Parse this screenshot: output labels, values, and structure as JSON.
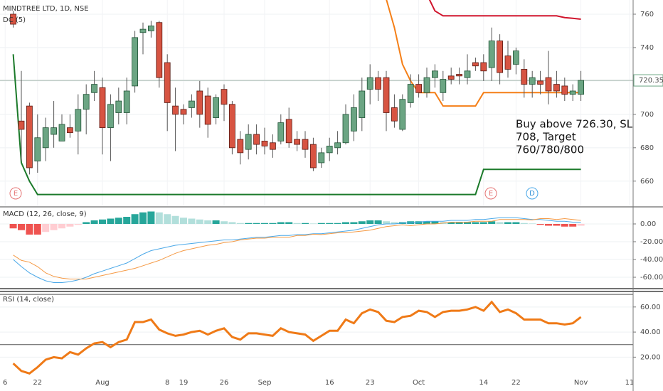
{
  "chart_data": [
    {
      "type": "candlestick",
      "title": "MINDTREE LTD, 1D, NSE",
      "indicator": "DC (5)",
      "up_color": "#6ba583",
      "down_color": "#d75442",
      "open": [
        760,
        696,
        705,
        672,
        680,
        688,
        684,
        692,
        690,
        703,
        713,
        716,
        692,
        701,
        701,
        717,
        749,
        750,
        755,
        731,
        705,
        703,
        704,
        714,
        711,
        698,
        715,
        706,
        685,
        679,
        688,
        684,
        683,
        684,
        697,
        685,
        685,
        682,
        671,
        677,
        680,
        683,
        690,
        698,
        715,
        722,
        722,
        704,
        691,
        707,
        718,
        713,
        722,
        713,
        723,
        724,
        722,
        731,
        731,
        728,
        744,
        735,
        730,
        727,
        718,
        720,
        722,
        718,
        717,
        712,
        712
      ],
      "high": [
        762,
        726,
        707,
        700,
        698,
        708,
        700,
        700,
        712,
        718,
        726,
        722,
        712,
        716,
        722,
        750,
        755,
        756,
        756,
        736,
        716,
        706,
        712,
        720,
        716,
        712,
        718,
        708,
        690,
        694,
        694,
        692,
        688,
        700,
        704,
        690,
        690,
        686,
        680,
        686,
        690,
        706,
        712,
        722,
        730,
        726,
        726,
        712,
        712,
        724,
        724,
        728,
        730,
        726,
        728,
        728,
        736,
        734,
        736,
        752,
        748,
        744,
        740,
        733,
        726,
        726,
        738,
        726,
        722,
        718,
        726
      ],
      "low": [
        752,
        672,
        664,
        665,
        672,
        680,
        684,
        686,
        676,
        688,
        708,
        676,
        672,
        694,
        694,
        713,
        736,
        746,
        716,
        690,
        678,
        694,
        698,
        692,
        686,
        694,
        696,
        676,
        670,
        673,
        676,
        676,
        674,
        682,
        680,
        678,
        674,
        666,
        668,
        672,
        676,
        682,
        684,
        690,
        706,
        708,
        690,
        692,
        690,
        704,
        710,
        710,
        716,
        708,
        718,
        718,
        718,
        726,
        720,
        720,
        718,
        722,
        724,
        710,
        710,
        712,
        706,
        710,
        708,
        708,
        708
      ],
      "close": [
        754,
        691,
        668,
        686,
        692,
        692,
        694,
        689,
        703,
        712,
        718,
        692,
        706,
        708,
        714,
        746,
        751,
        753,
        722,
        707,
        700,
        700,
        708,
        700,
        694,
        710,
        706,
        680,
        677,
        688,
        682,
        681,
        679,
        695,
        683,
        682,
        679,
        668,
        677,
        681,
        683,
        700,
        704,
        714,
        722,
        715,
        701,
        696,
        709,
        718,
        713,
        722,
        726,
        721,
        721,
        723,
        726,
        729,
        726,
        744,
        725,
        727,
        738,
        718,
        722,
        718,
        714,
        714,
        712,
        714,
        720.35
      ],
      "series": [
        {
          "color": "#1b7a2a",
          "values": [
            736,
            671,
            660,
            652,
            652,
            652,
            652,
            652,
            652,
            652,
            652,
            652,
            652,
            652,
            652,
            652,
            652,
            652,
            652,
            652,
            652,
            652,
            652,
            652,
            652,
            652,
            652,
            652,
            652,
            652,
            652,
            652,
            652,
            652,
            652,
            652,
            652,
            652,
            652,
            652,
            652,
            652,
            652,
            652,
            652,
            652,
            652,
            652,
            652,
            652,
            652,
            652,
            652,
            652,
            652,
            652,
            652,
            652,
            667,
            667,
            667,
            667,
            667,
            667,
            667,
            667,
            667,
            667,
            667,
            667,
            667
          ]
        },
        {
          "color": "#f57f17",
          "values": [
            null,
            null,
            null,
            null,
            null,
            null,
            null,
            null,
            null,
            null,
            null,
            null,
            null,
            null,
            null,
            null,
            null,
            null,
            null,
            null,
            null,
            null,
            null,
            null,
            null,
            null,
            null,
            null,
            null,
            null,
            null,
            null,
            null,
            null,
            null,
            null,
            null,
            null,
            null,
            null,
            null,
            null,
            null,
            null,
            null,
            null,
            769,
            752,
            730,
            720,
            713,
            713,
            713,
            705,
            705,
            705,
            705,
            705,
            713,
            713,
            713,
            713,
            713,
            713,
            713,
            713,
            713,
            713,
            713,
            713,
            713
          ]
        },
        {
          "color": "#d0142c",
          "values": [
            null,
            null,
            null,
            null,
            null,
            null,
            null,
            null,
            null,
            null,
            null,
            null,
            null,
            null,
            null,
            null,
            null,
            null,
            null,
            null,
            null,
            null,
            null,
            null,
            null,
            null,
            null,
            null,
            null,
            null,
            null,
            null,
            null,
            null,
            null,
            null,
            null,
            null,
            null,
            null,
            null,
            null,
            null,
            null,
            null,
            null,
            null,
            null,
            null,
            null,
            null,
            772,
            762,
            759,
            759,
            759,
            759,
            759,
            759,
            759,
            759,
            759,
            759,
            759,
            759,
            759,
            759,
            759,
            758,
            757.5,
            757
          ]
        }
      ],
      "last_price": {
        "value": 720.35,
        "label": "720.35"
      },
      "annotation": [
        "Buy above 726.30, SL",
        "708, Target",
        "760/780/800"
      ],
      "events": [
        "E",
        "E",
        "D"
      ],
      "ylim": [
        645,
        768.5
      ],
      "yticks": [
        660,
        680,
        700,
        720,
        740,
        760
      ],
      "xticks": [
        {
          "value": -1,
          "label": "6"
        },
        {
          "value": 3,
          "label": "22"
        },
        {
          "value": 11,
          "label": "Aug"
        },
        {
          "value": 19,
          "label": "8"
        },
        {
          "value": 21,
          "label": "19"
        },
        {
          "value": 26,
          "label": "26"
        },
        {
          "value": 31,
          "label": "Sep"
        },
        {
          "value": 39,
          "label": "16"
        },
        {
          "value": 44,
          "label": "23"
        },
        {
          "value": 50,
          "label": "Oct"
        },
        {
          "value": 58,
          "label": "14"
        },
        {
          "value": 62,
          "label": "22"
        },
        {
          "value": 70,
          "label": "Nov"
        },
        {
          "value": 76,
          "label": "11"
        }
      ]
    },
    {
      "type": "macd",
      "title": "MACD (12, 26, close, 9)",
      "histogram": [
        -5,
        -7,
        -12,
        -12,
        -9,
        -7,
        -5,
        -3,
        -1,
        2,
        4,
        5,
        6,
        7,
        8,
        11,
        13,
        14,
        13,
        11,
        9,
        7,
        6,
        5,
        4,
        4,
        3,
        2,
        1,
        1,
        1,
        1,
        1,
        2,
        2,
        1,
        1,
        0.5,
        1,
        1,
        1,
        2,
        2,
        3,
        4,
        4,
        3,
        2,
        2,
        3,
        3,
        3,
        3,
        2,
        2,
        2,
        2,
        2,
        2,
        3,
        2,
        2,
        2,
        1,
        0.5,
        -1,
        -2,
        -2,
        -3,
        -3,
        -2
      ],
      "histogram_colors": {
        "pos_up": "#26a69a",
        "pos_down": "#b2dfdb",
        "neg_down": "#ef5350",
        "neg_up": "#ffcdd2"
      },
      "series": [
        {
          "color": "#4aa8e8",
          "values": [
            -40,
            -48,
            -55,
            -60,
            -64,
            -66,
            -66,
            -65,
            -63,
            -60,
            -56,
            -53,
            -50,
            -47,
            -44,
            -39,
            -34,
            -30,
            -28,
            -26,
            -24,
            -23,
            -22,
            -21,
            -20,
            -19,
            -18,
            -18,
            -17,
            -16,
            -15,
            -15,
            -14,
            -13,
            -13,
            -12,
            -12,
            -11,
            -11,
            -10,
            -9,
            -8,
            -7,
            -5,
            -3,
            -1,
            0,
            0,
            1,
            1,
            2,
            3,
            3,
            3,
            4,
            4,
            4,
            5,
            5,
            6,
            7,
            7,
            7,
            6,
            5,
            5,
            4,
            3,
            3,
            2,
            2
          ]
        },
        {
          "color": "#f59a45",
          "values": [
            -35,
            -41,
            -43,
            -48,
            -55,
            -59,
            -61,
            -62,
            -62,
            -62,
            -60,
            -58,
            -56,
            -54,
            -52,
            -50,
            -47,
            -44,
            -41,
            -37,
            -33,
            -30,
            -28,
            -26,
            -24,
            -23,
            -21,
            -20,
            -18,
            -17,
            -16,
            -16,
            -15,
            -15,
            -15,
            -13,
            -13,
            -11.5,
            -12,
            -11,
            -10,
            -10,
            -9,
            -8,
            -7,
            -5,
            -3,
            -2,
            -1,
            -2,
            -1,
            0,
            0,
            1,
            2,
            2,
            2,
            3,
            3,
            3,
            5,
            5,
            5,
            5,
            4.5,
            6,
            6,
            5,
            6,
            5,
            4
          ]
        }
      ],
      "ylim": [
        -72,
        18.4
      ],
      "yticks": [
        {
          "value": 0,
          "label": "0.00"
        },
        {
          "value": -20,
          "label": "-20.00"
        },
        {
          "value": -40,
          "label": "-40.00"
        },
        {
          "value": -60,
          "label": "-60.00"
        }
      ]
    },
    {
      "type": "line",
      "title": "RSI (14, close)",
      "series": [
        {
          "color": "#ef7a17",
          "values": [
            15,
            9,
            7,
            12,
            18,
            20,
            19,
            24,
            22,
            27,
            31,
            32,
            28,
            32,
            34,
            48,
            48,
            50,
            42,
            39,
            37,
            38,
            40,
            41,
            38,
            41,
            43,
            36,
            34,
            39,
            39,
            38,
            37,
            43,
            40,
            39,
            38,
            33,
            37,
            41,
            41,
            50,
            47,
            55,
            58,
            56,
            49,
            48,
            52,
            53,
            57,
            56,
            52,
            56,
            57,
            57,
            58,
            60,
            57,
            64,
            56,
            58,
            55,
            50,
            50,
            50,
            47,
            47,
            46,
            47,
            52
          ]
        }
      ],
      "bands": [
        70,
        30
      ],
      "ylim": [
        -7,
        71.8
      ],
      "yticks": [
        {
          "value": 20,
          "label": "20.00"
        },
        {
          "value": 40,
          "label": "40.00"
        },
        {
          "value": 60,
          "label": "60.00"
        }
      ]
    }
  ]
}
